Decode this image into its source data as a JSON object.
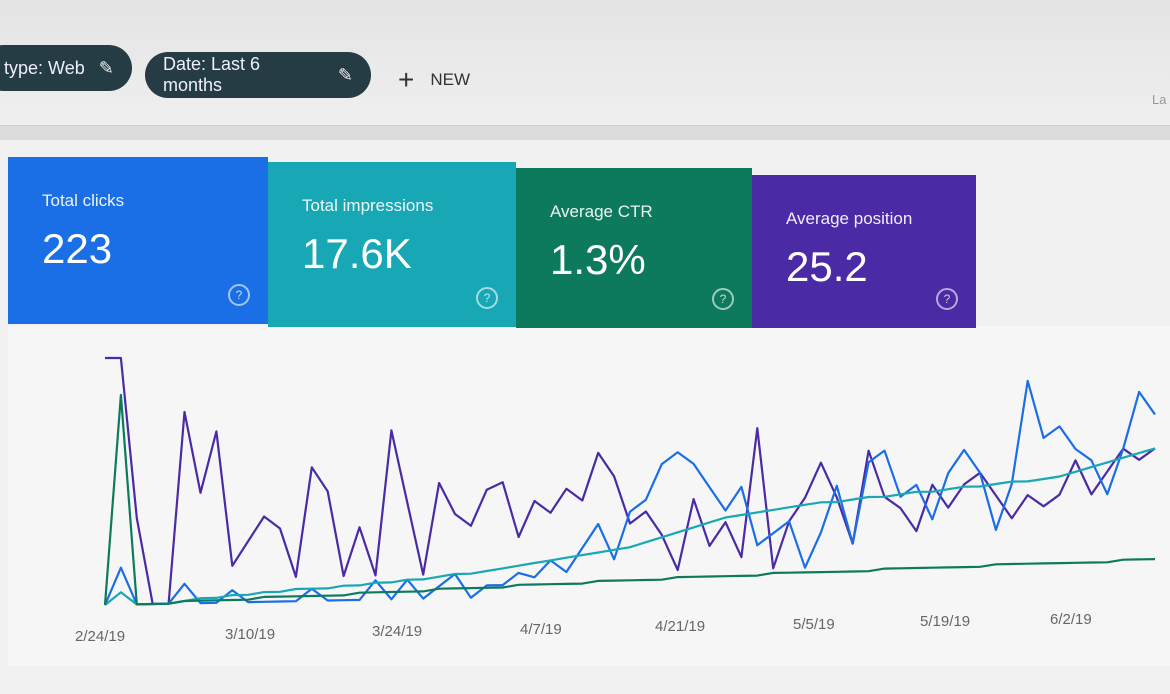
{
  "filters": {
    "chip1": "type: Web",
    "chip2": "Date: Last 6 months",
    "new_label": "NEW",
    "partial_right": "La"
  },
  "icons": {
    "edit": "pencil-icon",
    "add": "plus-icon",
    "help": "question-circle-icon"
  },
  "cards": [
    {
      "label": "Total clicks",
      "value": "223",
      "color": "#1a6ee6"
    },
    {
      "label": "Total impressions",
      "value": "17.6K",
      "color": "#17a7b5"
    },
    {
      "label": "Average CTR",
      "value": "1.3%",
      "color": "#0d7a5d"
    },
    {
      "label": "Average position",
      "value": "25.2",
      "color": "#4b2aa5"
    }
  ],
  "chart_data": {
    "type": "line",
    "x_ticks": [
      "2/24/19",
      "3/10/19",
      "3/24/19",
      "4/7/19",
      "4/21/19",
      "5/5/19",
      "5/19/19",
      "6/2/19"
    ],
    "grid": false,
    "series": [
      {
        "color": "#4b2aa5",
        "values": [
          100,
          100,
          35,
          0,
          0,
          78,
          45,
          70,
          15,
          25,
          35,
          30,
          10,
          55,
          45,
          10,
          30,
          10,
          70,
          40,
          10,
          48,
          35,
          30,
          45,
          48,
          25,
          40,
          35,
          45,
          40,
          60,
          50,
          30,
          35,
          25,
          10,
          40,
          20,
          30,
          15,
          70,
          10,
          30,
          40,
          55,
          40,
          20,
          60,
          40,
          35,
          25,
          45,
          35,
          45,
          50,
          40,
          30,
          40,
          35,
          40,
          55,
          40,
          50,
          60,
          55,
          60
        ]
      },
      {
        "color": "#1a6ee6",
        "values": [
          0,
          15,
          0,
          0,
          0,
          8,
          0,
          0,
          5,
          0,
          0,
          0,
          0,
          5,
          0,
          0,
          0,
          8,
          0,
          8,
          0,
          5,
          10,
          0,
          5,
          5,
          10,
          8,
          15,
          10,
          20,
          30,
          15,
          35,
          40,
          55,
          60,
          55,
          45,
          35,
          45,
          20,
          25,
          30,
          10,
          25,
          45,
          20,
          55,
          60,
          40,
          45,
          30,
          50,
          60,
          50,
          25,
          45,
          90,
          65,
          70,
          60,
          55,
          40,
          60,
          85,
          75
        ]
      },
      {
        "color": "#17a7b5",
        "values": [
          0,
          5,
          0,
          0,
          0,
          1,
          2,
          2,
          3,
          3,
          4,
          4,
          5,
          5,
          5,
          6,
          6,
          7,
          7,
          8,
          8,
          9,
          10,
          10,
          11,
          12,
          13,
          14,
          15,
          16,
          17,
          18,
          19,
          20,
          22,
          24,
          26,
          28,
          30,
          32,
          33,
          34,
          35,
          36,
          37,
          38,
          38,
          39,
          40,
          40,
          41,
          42,
          42,
          43,
          44,
          44,
          45,
          46,
          46,
          47,
          48,
          50,
          52,
          54,
          56,
          58,
          60
        ]
      },
      {
        "color": "#0d7a5d",
        "values": [
          0,
          85,
          0,
          0,
          0,
          1,
          1,
          1,
          1,
          1,
          2,
          2,
          2,
          2,
          2,
          2,
          3,
          3,
          3,
          3,
          3,
          4,
          4,
          4,
          4,
          4,
          5,
          5,
          5,
          5,
          5,
          6,
          6,
          6,
          6,
          6,
          7,
          7,
          7,
          7,
          7,
          7,
          8,
          8,
          8,
          8,
          8,
          8,
          8,
          9,
          9,
          9,
          9,
          9,
          9,
          9,
          10,
          10,
          10,
          10,
          10,
          10,
          10,
          10,
          11,
          11,
          11
        ]
      }
    ]
  }
}
